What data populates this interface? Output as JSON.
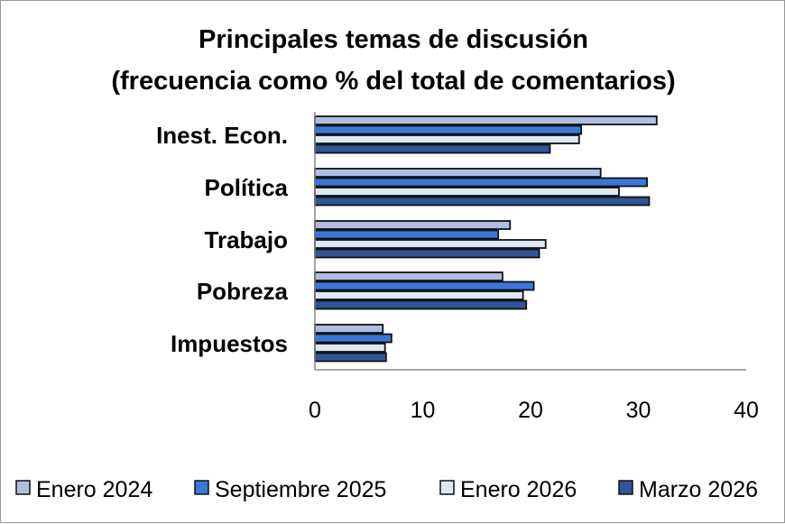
{
  "chart_data": {
    "type": "bar",
    "orientation": "horizontal",
    "title": "Principales temas de discusión",
    "subtitle": "(frecuencia como % del total de comentarios)",
    "categories": [
      "Inest. Econ.",
      "Política",
      "Trabajo",
      "Pobreza",
      "Impuestos"
    ],
    "series": [
      {
        "name": "Enero 2024",
        "color": "#b0bde0",
        "values": [
          31.7,
          26.5,
          18.1,
          17.4,
          6.3
        ]
      },
      {
        "name": "Septiembre 2025",
        "color": "#3a78d8",
        "values": [
          24.7,
          30.8,
          17.0,
          20.3,
          7.1
        ]
      },
      {
        "name": "Enero 2026",
        "color": "#dde8f5",
        "values": [
          24.5,
          28.2,
          21.4,
          19.3,
          6.5
        ]
      },
      {
        "name": "Marzo 2026",
        "color": "#2f5597",
        "values": [
          21.8,
          31.0,
          20.8,
          19.6,
          6.6
        ]
      }
    ],
    "xlim": [
      0,
      40
    ],
    "xticks": [
      "0",
      "10",
      "20",
      "30",
      "40"
    ],
    "xlabel": "",
    "ylabel": "",
    "grid": false,
    "legend_position": "bottom"
  }
}
